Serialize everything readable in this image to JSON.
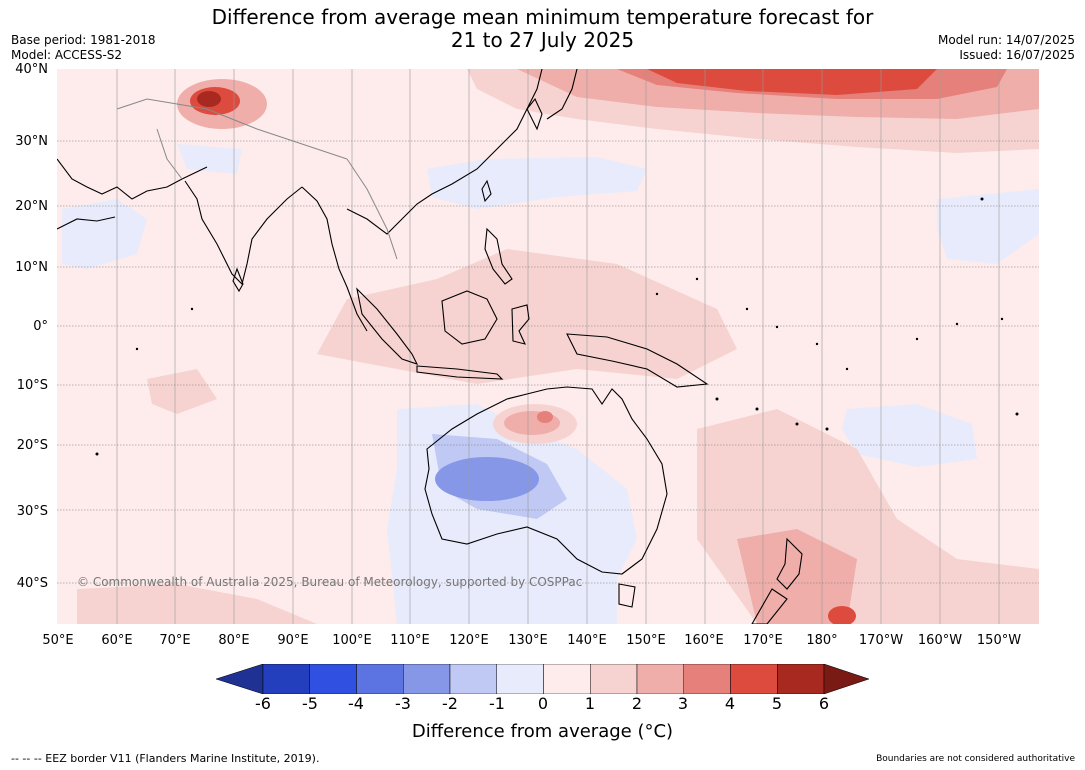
{
  "title": {
    "line1": "Difference from average mean minimum temperature forecast for",
    "line2": "21 to 27 July 2025"
  },
  "meta": {
    "base_period": "Base period: 1981-2018",
    "model": "Model: ACCESS-S2",
    "model_run": "Model run: 14/07/2025",
    "issued": "Issued: 16/07/2025"
  },
  "axes": {
    "lat_labels": [
      "40°N",
      "30°N",
      "20°N",
      "10°N",
      "0°",
      "10°S",
      "20°S",
      "30°S",
      "40°S"
    ],
    "lon_labels": [
      "50°E",
      "60°E",
      "70°E",
      "80°E",
      "90°E",
      "100°E",
      "110°E",
      "120°E",
      "130°E",
      "140°E",
      "150°E",
      "160°E",
      "170°E",
      "180°",
      "170°W",
      "160°W",
      "150°W"
    ]
  },
  "copyright": "© Commonwealth of Australia 2025, Bureau of Meteorology, supported by COSPPac",
  "colorbar": {
    "ticks": [
      "-6",
      "-5",
      "-4",
      "-3",
      "-2",
      "-1",
      "0",
      "1",
      "2",
      "3",
      "4",
      "5",
      "6"
    ],
    "colors": [
      "#1f3294",
      "#243fbd",
      "#2f50e0",
      "#5c74e2",
      "#8797e8",
      "#c0c8f4",
      "#e8ebfb",
      "#fdeceb",
      "#f6d3d1",
      "#efaeaa",
      "#e6807a",
      "#dc4b3e",
      "#a8291f",
      "#7a1a14"
    ],
    "label": "Difference from average (°C)"
  },
  "footer": {
    "eez": "--  --  -- EEZ border V11 (Flanders Marine Institute, 2019).",
    "boundaries": "Boundaries are not considered authoritative"
  }
}
